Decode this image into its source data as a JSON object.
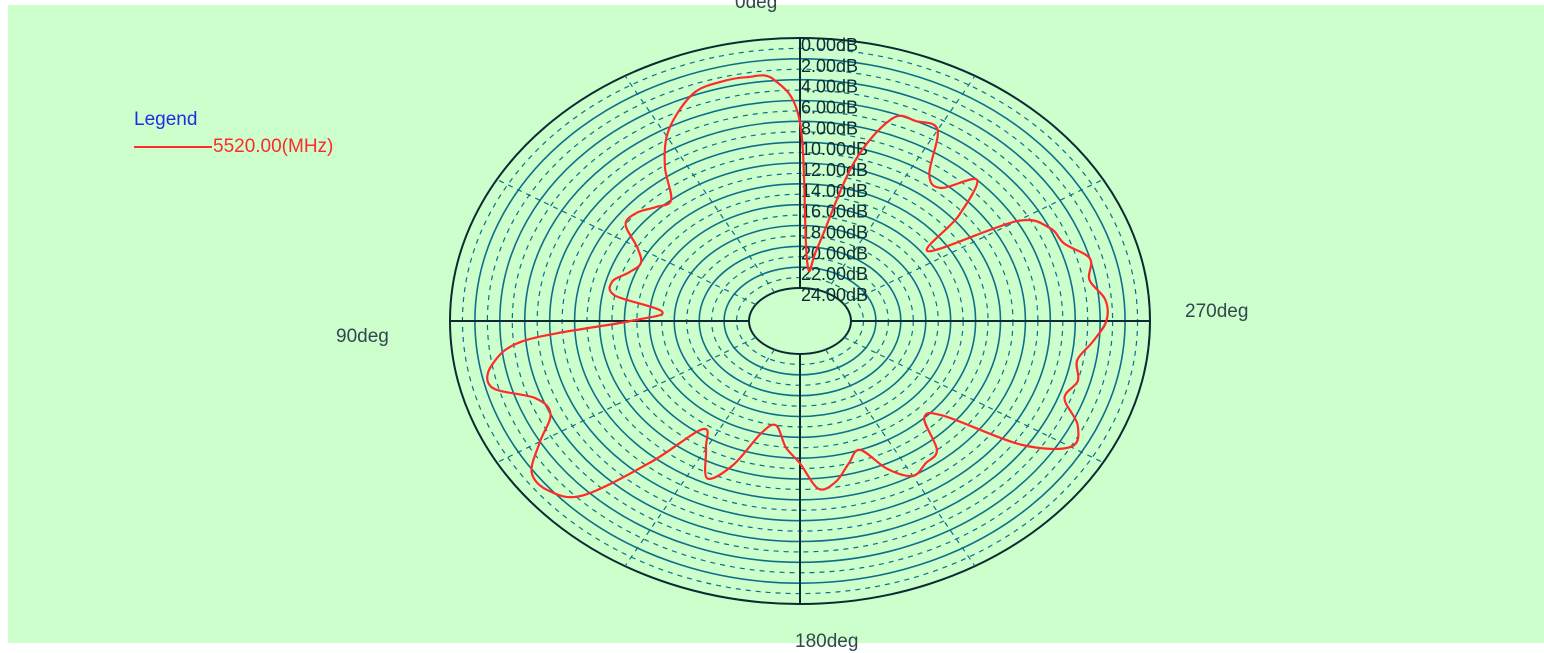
{
  "legend": {
    "title": "Legend",
    "series_label": "5520.00(MHz)"
  },
  "angle_labels": {
    "top": "0deg",
    "left": "90deg",
    "bottom": "180deg",
    "right": "270deg"
  },
  "colors": {
    "background": "#ccffcc",
    "grid": "#0f6f8a",
    "axis": "#0b2b33",
    "trace": "#ff2a2a",
    "legend_title": "#1f2fe0"
  },
  "chart_data": {
    "type": "line",
    "subtype": "polar",
    "rlabels": [
      "0.00dB",
      "2.00dB",
      "4.00dB",
      "6.00dB",
      "8.00dB",
      "10.00dB",
      "12.00dB",
      "14.00dB",
      "16.00dB",
      "18.00dB",
      "20.00dB",
      "22.00dB",
      "24.00dB"
    ],
    "rlim_db": [
      -24,
      0
    ],
    "angle_direction": "counterclockwise from top",
    "series": [
      {
        "name": "5520.00(MHz)",
        "angle_deg": [
          0,
          5,
          10,
          15,
          20,
          25,
          30,
          35,
          40,
          45,
          50,
          55,
          60,
          65,
          70,
          75,
          80,
          85,
          90,
          95,
          100,
          105,
          110,
          115,
          120,
          125,
          130,
          135,
          140,
          145,
          150,
          155,
          160,
          165,
          170,
          175,
          180,
          185,
          190,
          195,
          200,
          205,
          210,
          215,
          220,
          225,
          230,
          235,
          240,
          245,
          250,
          255,
          260,
          265,
          270,
          275,
          280,
          285,
          290,
          295,
          300,
          305,
          310,
          315,
          320,
          325,
          330,
          335,
          340,
          345,
          350,
          355
        ],
        "gain_db": [
          -8.1,
          -3.9,
          -3.4,
          -3.4,
          -3.7,
          -5.0,
          -6.7,
          -9.2,
          -12.0,
          -11.7,
          -11.0,
          -11.0,
          -13.0,
          -14.0,
          -13.5,
          -12.5,
          -13.0,
          -17.0,
          -14.5,
          -6.0,
          -3.0,
          -2.5,
          -5.5,
          -6.0,
          -4.0,
          -1.8,
          -1.8,
          -3.5,
          -9.5,
          -14.5,
          -13.0,
          -10.5,
          -12.5,
          -16.0,
          -17.0,
          -15.0,
          -13.5,
          -11.0,
          -11.5,
          -13.0,
          -14.0,
          -11.5,
          -10.0,
          -10.5,
          -11.0,
          -14.0,
          -13.0,
          -6.5,
          -3.0,
          -3.5,
          -5.5,
          -5.0,
          -5.5,
          -4.5,
          -3.5,
          -3.5,
          -4.5,
          -4.0,
          -5.5,
          -6.0,
          -8.0,
          -15.5,
          -11.5,
          -8.0,
          -10.5,
          -10.0,
          -6.0,
          -6.0,
          -6.5,
          -11.5,
          -20.0,
          -21.5
        ]
      }
    ]
  }
}
